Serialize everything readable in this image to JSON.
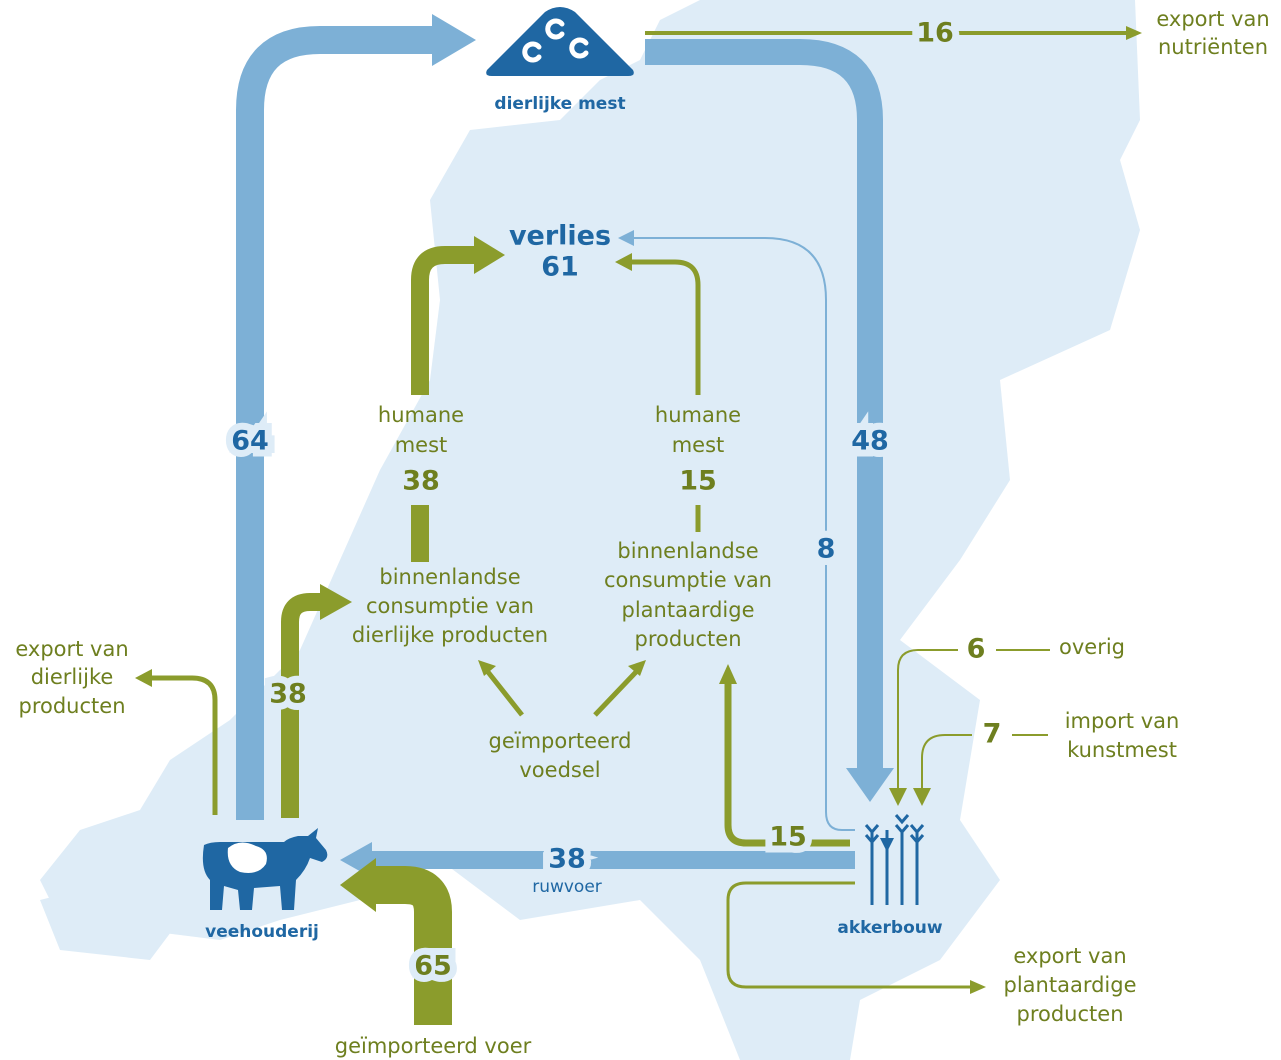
{
  "nodes": [
    {
      "label": [
        "dierlijke mest"
      ]
    },
    {
      "label": [
        "verlies"
      ],
      "value": "61"
    },
    {
      "label": [
        "binnenlandse",
        "consumptie van",
        "dierlijke producten"
      ]
    },
    {
      "label": [
        "binnenlandse",
        "consumptie van",
        "plantaardige",
        "producten"
      ]
    },
    {
      "label": [
        "geïmporteerd",
        "voedsel"
      ]
    },
    {
      "label": [
        "export van",
        "dierlijke",
        "producten"
      ]
    },
    {
      "label": [
        "veehouderij"
      ]
    },
    {
      "label": [
        "akkerbouw"
      ]
    },
    {
      "label": [
        "export van",
        "plantaardige",
        "producten"
      ]
    }
  ],
  "flows": [
    {
      "value": "64"
    },
    {
      "value": "48"
    },
    {
      "value": "16",
      "label": [
        "export van",
        "nutriënten"
      ]
    },
    {
      "value": "8"
    },
    {
      "value": "38",
      "label": [
        "humane",
        "mest"
      ]
    },
    {
      "value": "15",
      "label": [
        "humane",
        "mest"
      ]
    },
    {
      "value": "38"
    },
    {
      "value": "15"
    },
    {
      "value": "6",
      "label": [
        "overig"
      ]
    },
    {
      "value": "7",
      "label": [
        "import van",
        "kunstmest"
      ]
    },
    {
      "value": "38",
      "label": [
        "ruwvoer"
      ]
    },
    {
      "value": "65",
      "label": [
        "geïmporteerd voer"
      ]
    }
  ]
}
